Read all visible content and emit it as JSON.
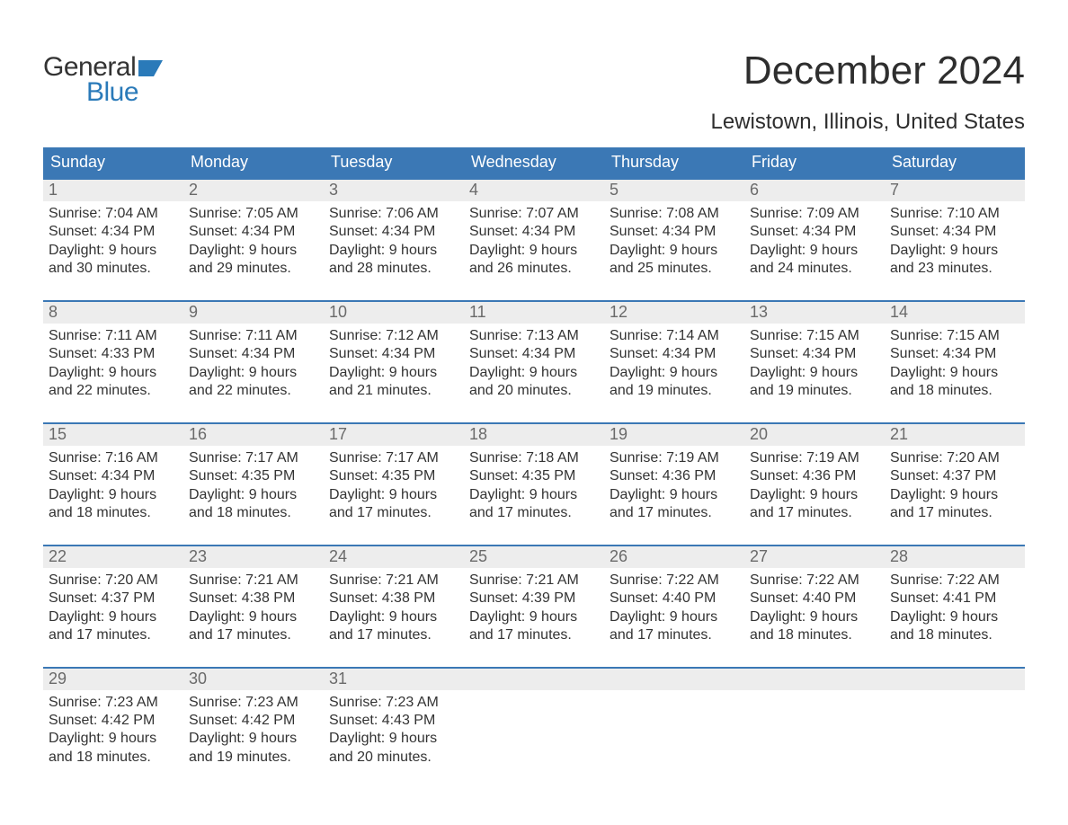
{
  "logo": {
    "word1": "General",
    "word2": "Blue"
  },
  "title": "December 2024",
  "location": "Lewistown, Illinois, United States",
  "colors": {
    "header_bg": "#3b78b5",
    "header_text": "#ffffff",
    "day_strip_bg": "#ededed",
    "day_num_color": "#6a6a6a",
    "border_color": "#3b78b5",
    "body_text": "#333333",
    "logo_blue": "#2a7ab9"
  },
  "weekdays": [
    "Sunday",
    "Monday",
    "Tuesday",
    "Wednesday",
    "Thursday",
    "Friday",
    "Saturday"
  ],
  "weeks": [
    [
      {
        "num": "1",
        "sunrise": "7:04 AM",
        "sunset": "4:34 PM",
        "daylight": "9 hours and 30 minutes."
      },
      {
        "num": "2",
        "sunrise": "7:05 AM",
        "sunset": "4:34 PM",
        "daylight": "9 hours and 29 minutes."
      },
      {
        "num": "3",
        "sunrise": "7:06 AM",
        "sunset": "4:34 PM",
        "daylight": "9 hours and 28 minutes."
      },
      {
        "num": "4",
        "sunrise": "7:07 AM",
        "sunset": "4:34 PM",
        "daylight": "9 hours and 26 minutes."
      },
      {
        "num": "5",
        "sunrise": "7:08 AM",
        "sunset": "4:34 PM",
        "daylight": "9 hours and 25 minutes."
      },
      {
        "num": "6",
        "sunrise": "7:09 AM",
        "sunset": "4:34 PM",
        "daylight": "9 hours and 24 minutes."
      },
      {
        "num": "7",
        "sunrise": "7:10 AM",
        "sunset": "4:34 PM",
        "daylight": "9 hours and 23 minutes."
      }
    ],
    [
      {
        "num": "8",
        "sunrise": "7:11 AM",
        "sunset": "4:33 PM",
        "daylight": "9 hours and 22 minutes."
      },
      {
        "num": "9",
        "sunrise": "7:11 AM",
        "sunset": "4:34 PM",
        "daylight": "9 hours and 22 minutes."
      },
      {
        "num": "10",
        "sunrise": "7:12 AM",
        "sunset": "4:34 PM",
        "daylight": "9 hours and 21 minutes."
      },
      {
        "num": "11",
        "sunrise": "7:13 AM",
        "sunset": "4:34 PM",
        "daylight": "9 hours and 20 minutes."
      },
      {
        "num": "12",
        "sunrise": "7:14 AM",
        "sunset": "4:34 PM",
        "daylight": "9 hours and 19 minutes."
      },
      {
        "num": "13",
        "sunrise": "7:15 AM",
        "sunset": "4:34 PM",
        "daylight": "9 hours and 19 minutes."
      },
      {
        "num": "14",
        "sunrise": "7:15 AM",
        "sunset": "4:34 PM",
        "daylight": "9 hours and 18 minutes."
      }
    ],
    [
      {
        "num": "15",
        "sunrise": "7:16 AM",
        "sunset": "4:34 PM",
        "daylight": "9 hours and 18 minutes."
      },
      {
        "num": "16",
        "sunrise": "7:17 AM",
        "sunset": "4:35 PM",
        "daylight": "9 hours and 18 minutes."
      },
      {
        "num": "17",
        "sunrise": "7:17 AM",
        "sunset": "4:35 PM",
        "daylight": "9 hours and 17 minutes."
      },
      {
        "num": "18",
        "sunrise": "7:18 AM",
        "sunset": "4:35 PM",
        "daylight": "9 hours and 17 minutes."
      },
      {
        "num": "19",
        "sunrise": "7:19 AM",
        "sunset": "4:36 PM",
        "daylight": "9 hours and 17 minutes."
      },
      {
        "num": "20",
        "sunrise": "7:19 AM",
        "sunset": "4:36 PM",
        "daylight": "9 hours and 17 minutes."
      },
      {
        "num": "21",
        "sunrise": "7:20 AM",
        "sunset": "4:37 PM",
        "daylight": "9 hours and 17 minutes."
      }
    ],
    [
      {
        "num": "22",
        "sunrise": "7:20 AM",
        "sunset": "4:37 PM",
        "daylight": "9 hours and 17 minutes."
      },
      {
        "num": "23",
        "sunrise": "7:21 AM",
        "sunset": "4:38 PM",
        "daylight": "9 hours and 17 minutes."
      },
      {
        "num": "24",
        "sunrise": "7:21 AM",
        "sunset": "4:38 PM",
        "daylight": "9 hours and 17 minutes."
      },
      {
        "num": "25",
        "sunrise": "7:21 AM",
        "sunset": "4:39 PM",
        "daylight": "9 hours and 17 minutes."
      },
      {
        "num": "26",
        "sunrise": "7:22 AM",
        "sunset": "4:40 PM",
        "daylight": "9 hours and 17 minutes."
      },
      {
        "num": "27",
        "sunrise": "7:22 AM",
        "sunset": "4:40 PM",
        "daylight": "9 hours and 18 minutes."
      },
      {
        "num": "28",
        "sunrise": "7:22 AM",
        "sunset": "4:41 PM",
        "daylight": "9 hours and 18 minutes."
      }
    ],
    [
      {
        "num": "29",
        "sunrise": "7:23 AM",
        "sunset": "4:42 PM",
        "daylight": "9 hours and 18 minutes."
      },
      {
        "num": "30",
        "sunrise": "7:23 AM",
        "sunset": "4:42 PM",
        "daylight": "9 hours and 19 minutes."
      },
      {
        "num": "31",
        "sunrise": "7:23 AM",
        "sunset": "4:43 PM",
        "daylight": "9 hours and 20 minutes."
      },
      null,
      null,
      null,
      null
    ]
  ],
  "labels": {
    "sunrise": "Sunrise: ",
    "sunset": "Sunset: ",
    "daylight": "Daylight: "
  }
}
